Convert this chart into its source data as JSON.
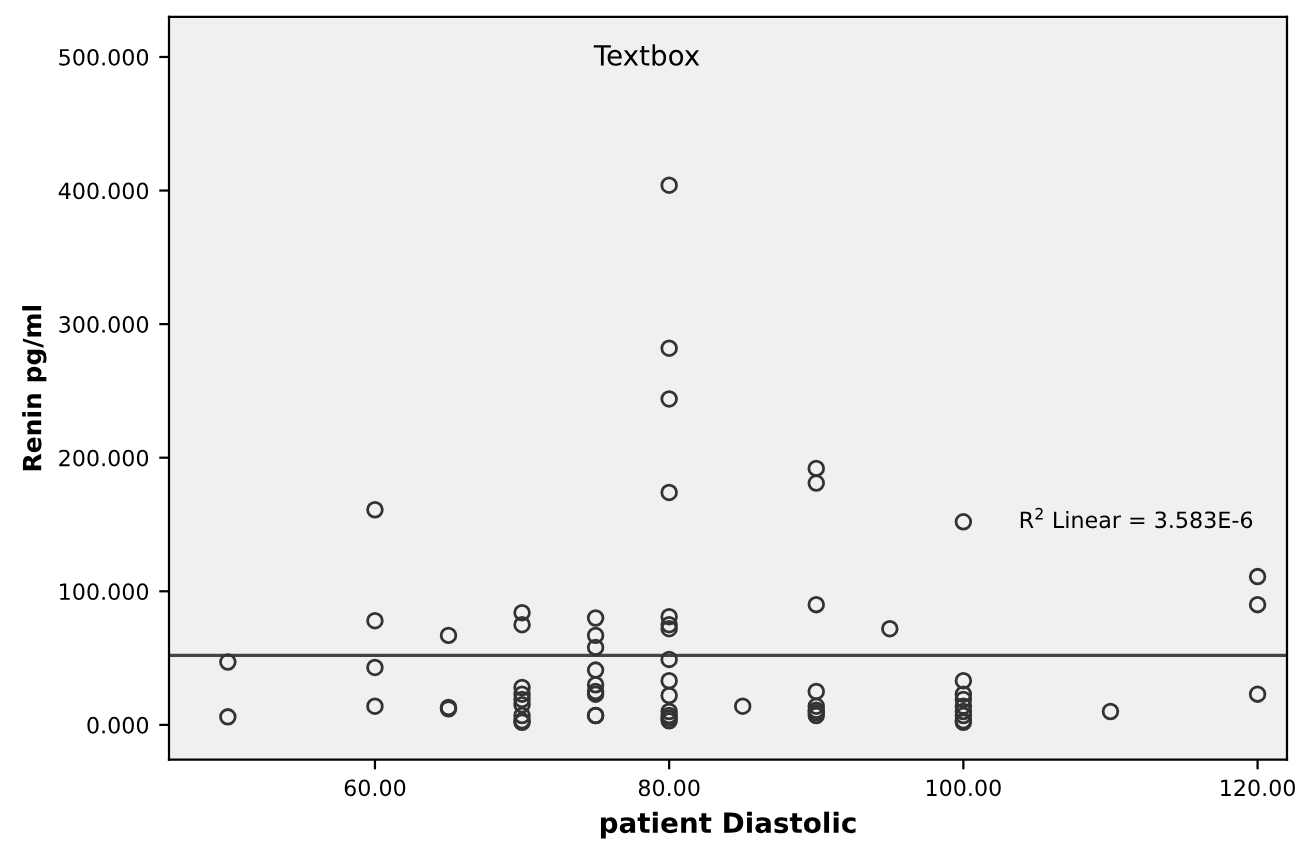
{
  "chart_data": {
    "type": "scatter",
    "xlabel": "patient Diastolic",
    "ylabel": "Renin pg/ml",
    "annotations": [
      "Textbox",
      "R$^{2}$ Linear = 3.583E-6"
    ],
    "xlim": [
      46,
      122
    ],
    "ylim": [
      -26,
      530
    ],
    "xticks": [
      {
        "value": 60,
        "label": "60.00"
      },
      {
        "value": 80,
        "label": "80.00"
      },
      {
        "value": 100,
        "label": "100.00"
      },
      {
        "value": 120,
        "label": "120.00"
      }
    ],
    "yticks": [
      {
        "value": 0,
        "label": "0.000"
      },
      {
        "value": 100,
        "label": "100.000"
      },
      {
        "value": 200,
        "label": "200.000"
      },
      {
        "value": 300,
        "label": "300.000"
      },
      {
        "value": 400,
        "label": "400.000"
      },
      {
        "value": 500,
        "label": "500.000"
      }
    ],
    "grid": false,
    "legend": false,
    "series": [
      {
        "color": "#333333",
        "marker": "circle",
        "x": [
          50,
          50,
          60,
          60,
          60,
          60,
          65,
          65,
          65,
          70,
          70,
          70,
          70,
          70,
          70,
          70,
          70,
          70,
          75,
          75,
          75,
          75,
          75,
          75,
          75,
          75,
          75,
          80,
          80,
          80,
          80,
          80,
          80,
          80,
          80,
          80,
          80,
          80,
          80,
          80,
          80,
          85,
          90,
          90,
          90,
          90,
          90,
          90,
          90,
          90,
          95,
          100,
          100,
          100,
          100,
          100,
          100,
          100,
          100,
          100,
          110,
          120,
          120,
          120
        ],
        "values": [
          47,
          6,
          161,
          78,
          43,
          14,
          67,
          13,
          12,
          84,
          75,
          28,
          23,
          19,
          15,
          7,
          3,
          2,
          80,
          67,
          58,
          41,
          30,
          25,
          23,
          7,
          7,
          404,
          282,
          244,
          174,
          81,
          75,
          72,
          49,
          33,
          22,
          10,
          7,
          5,
          3,
          14,
          192,
          181,
          90,
          25,
          14,
          11,
          9,
          7,
          72,
          152,
          33,
          23,
          19,
          14,
          10,
          7,
          3,
          2,
          10,
          111,
          90,
          23
        ]
      },
      {
        "type": "line",
        "color": "#444444",
        "x": [
          46,
          122
        ],
        "values": [
          52,
          52
        ]
      }
    ]
  }
}
